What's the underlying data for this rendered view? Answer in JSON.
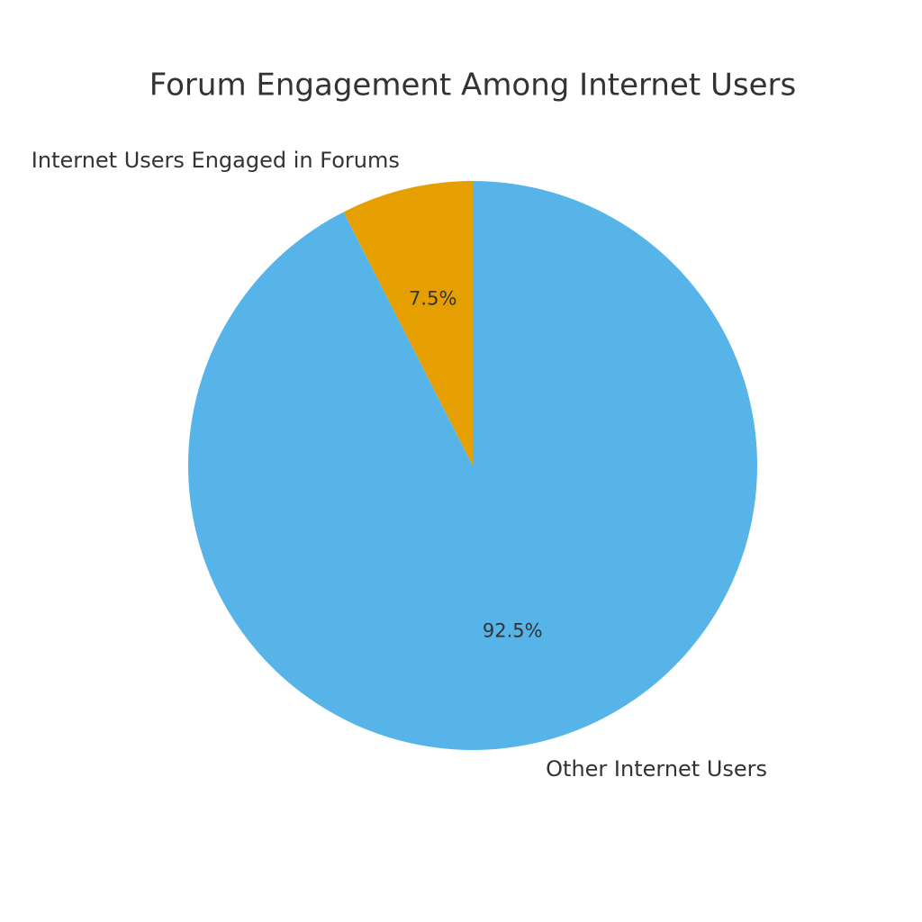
{
  "chart_data": {
    "type": "pie",
    "title": "Forum Engagement Among Internet Users",
    "categories": [
      "Internet Users Engaged in Forums",
      "Other Internet Users"
    ],
    "values": [
      7.5,
      92.5
    ],
    "value_labels": [
      "7.5%",
      "92.5%"
    ],
    "colors": [
      "#E69F00",
      "#56B4E9"
    ]
  }
}
